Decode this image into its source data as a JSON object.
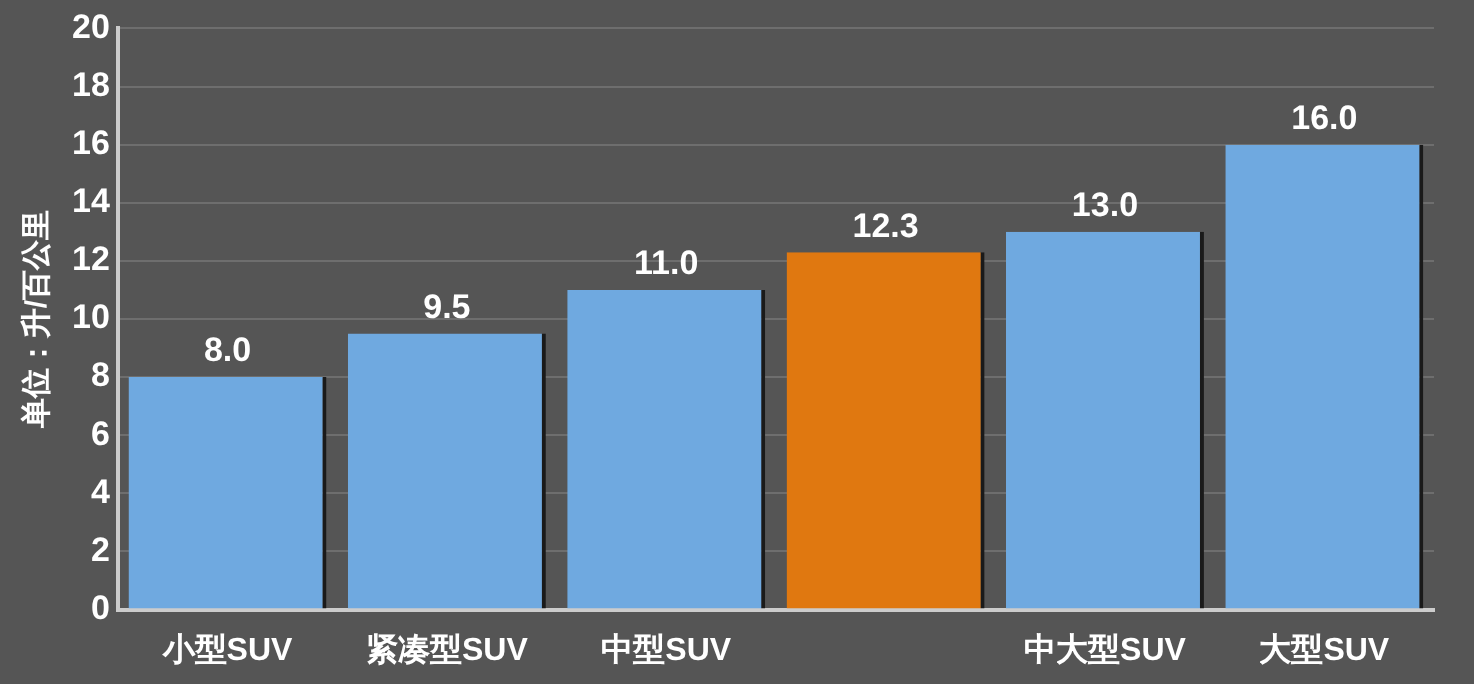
{
  "chart_data": {
    "type": "bar",
    "ylabel": "单位：升/百公里",
    "categories": [
      "小型SUV",
      "紧凑型SUV",
      "中型SUV",
      null,
      "中大型SUV",
      "大型SUV"
    ],
    "values": [
      8.0,
      9.5,
      11.0,
      12.3,
      13.0,
      16.0
    ],
    "value_labels": [
      "8.0",
      "9.5",
      "11.0",
      "12.3",
      "13.0",
      "16.0"
    ],
    "colors": [
      "#6fa9e0",
      "#6fa9e0",
      "#6fa9e0",
      "#e07810",
      "#6fa9e0",
      "#6fa9e0"
    ],
    "ylim": [
      0,
      20
    ],
    "yticks": [
      0,
      2,
      4,
      6,
      8,
      10,
      12,
      14,
      16,
      18,
      20
    ],
    "grid": "y",
    "legend": false
  }
}
